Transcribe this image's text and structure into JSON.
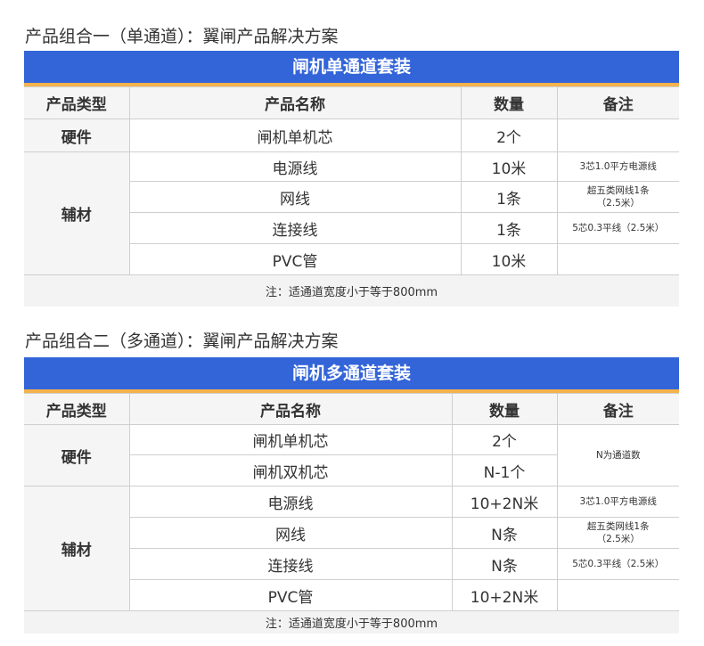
{
  "colors": {
    "bar": "#3365d9",
    "stripe": "#f6b24c"
  },
  "headers": [
    "产品类型",
    "产品名称",
    "数量",
    "备注"
  ],
  "sections": [
    {
      "title": "产品组合一（单通道）：翼闸产品解决方案",
      "bar": "闸机单通道套装",
      "groups": [
        {
          "type": "硬件",
          "items": [
            {
              "name": "闸机单机芯",
              "qty": "2个",
              "note": ""
            }
          ]
        },
        {
          "type": "辅材",
          "items": [
            {
              "name": "电源线",
              "qty": "10米",
              "note": "3芯1.0平方电源线"
            },
            {
              "name": "网线",
              "qty": "1条",
              "note": "超五类网线1条\n（2.5米）"
            },
            {
              "name": "连接线",
              "qty": "1条",
              "note": "5芯0.3平线（2.5米）"
            },
            {
              "name": "PVC管",
              "qty": "10米",
              "note": ""
            }
          ]
        }
      ],
      "footnote": "注：适通道宽度小于等于800mm"
    },
    {
      "title": "产品组合二（多通道）：翼闸产品解决方案",
      "bar": "闸机多通道套装",
      "groups": [
        {
          "type": "硬件",
          "shared_note": "N为通道数",
          "items": [
            {
              "name": "闸机单机芯",
              "qty": "2个"
            },
            {
              "name": "闸机双机芯",
              "qty": "N-1个"
            }
          ]
        },
        {
          "type": "辅材",
          "items": [
            {
              "name": "电源线",
              "qty": "10+2N米",
              "note": "3芯1.0平方电源线"
            },
            {
              "name": "网线",
              "qty": "N条",
              "note": "超五类网线1条\n（2.5米）"
            },
            {
              "name": "连接线",
              "qty": "N条",
              "note": "5芯0.3平线（2.5米）"
            },
            {
              "name": "PVC管",
              "qty": "10+2N米",
              "note": ""
            }
          ]
        }
      ],
      "footnote": "注：适通道宽度小于等于800mm"
    }
  ]
}
